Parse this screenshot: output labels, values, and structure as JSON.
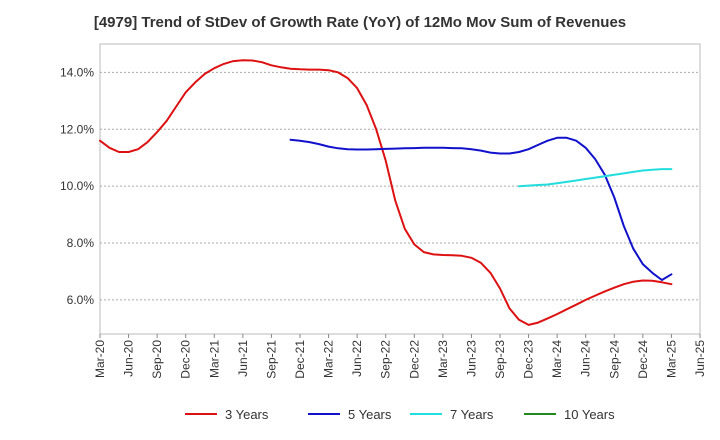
{
  "chart_data": {
    "type": "line",
    "title": "[4979]  Trend of StDev of Growth Rate (YoY) of 12Mo Mov Sum of Revenues",
    "xlabel": "",
    "ylabel": "",
    "ylim": [
      4.8,
      15.0
    ],
    "y_ticks": [
      6.0,
      8.0,
      10.0,
      12.0,
      14.0
    ],
    "y_tick_labels": [
      "6.0%",
      "8.0%",
      "10.0%",
      "12.0%",
      "14.0%"
    ],
    "x_tick_labels": [
      "Mar-20",
      "Jun-20",
      "Sep-20",
      "Dec-20",
      "Mar-21",
      "Jun-21",
      "Sep-21",
      "Dec-21",
      "Mar-22",
      "Jun-22",
      "Sep-22",
      "Dec-22",
      "Mar-23",
      "Jun-23",
      "Sep-23",
      "Dec-23",
      "Mar-24",
      "Jun-24",
      "Sep-24",
      "Dec-24",
      "Mar-25",
      "Jun-25"
    ],
    "x_range_months": [
      0,
      63
    ],
    "grid": "horizontal dashed",
    "legend_position": "bottom",
    "series": [
      {
        "name": "3 Years",
        "color": "#dd1111",
        "x": [
          0,
          1,
          2,
          3,
          4,
          5,
          6,
          7,
          8,
          9,
          10,
          11,
          12,
          13,
          14,
          15,
          16,
          17,
          18,
          19,
          20,
          21,
          22,
          23,
          24,
          25,
          26,
          27,
          28,
          29,
          30,
          31,
          32,
          33,
          34,
          35,
          36,
          37,
          38,
          39,
          40,
          41,
          42,
          43,
          44,
          45,
          46,
          47,
          48,
          49,
          50,
          51,
          52,
          53,
          54,
          55,
          56,
          57,
          58,
          59,
          60
        ],
        "values": [
          11.6,
          11.35,
          11.2,
          11.2,
          11.3,
          11.55,
          11.9,
          12.3,
          12.8,
          13.3,
          13.65,
          13.95,
          14.15,
          14.3,
          14.4,
          14.43,
          14.42,
          14.36,
          14.25,
          14.18,
          14.13,
          14.11,
          14.1,
          14.1,
          14.08,
          14.0,
          13.8,
          13.45,
          12.85,
          12.0,
          10.9,
          9.5,
          8.5,
          7.95,
          7.68,
          7.6,
          7.58,
          7.57,
          7.55,
          7.48,
          7.3,
          6.95,
          6.4,
          5.7,
          5.3,
          5.12,
          5.2,
          5.35,
          5.5,
          5.67,
          5.83,
          6.0,
          6.15,
          6.3,
          6.43,
          6.55,
          6.64,
          6.68,
          6.67,
          6.62,
          6.55
        ]
      },
      {
        "name": "5 Years",
        "color": "#1111cc",
        "x": [
          20,
          21,
          22,
          23,
          24,
          25,
          26,
          27,
          28,
          29,
          30,
          31,
          32,
          33,
          34,
          35,
          36,
          37,
          38,
          39,
          40,
          41,
          42,
          43,
          44,
          45,
          46,
          47,
          48,
          49,
          50,
          51,
          52,
          53,
          54,
          55,
          56,
          57,
          58,
          59,
          60
        ],
        "values": [
          11.63,
          11.6,
          11.55,
          11.48,
          11.39,
          11.33,
          11.3,
          11.29,
          11.29,
          11.3,
          11.31,
          11.32,
          11.33,
          11.34,
          11.35,
          11.35,
          11.35,
          11.34,
          11.33,
          11.3,
          11.25,
          11.18,
          11.15,
          11.15,
          11.2,
          11.3,
          11.45,
          11.6,
          11.7,
          11.7,
          11.6,
          11.35,
          10.95,
          10.4,
          9.6,
          8.6,
          7.8,
          7.25,
          6.95,
          6.7,
          6.9
        ]
      },
      {
        "name": "7 Years",
        "color": "#22dddd",
        "x": [
          44,
          45,
          46,
          47,
          48,
          49,
          50,
          51,
          52,
          53,
          54,
          55,
          56,
          57,
          58,
          59,
          60
        ],
        "values": [
          10.0,
          10.02,
          10.04,
          10.06,
          10.1,
          10.15,
          10.2,
          10.25,
          10.3,
          10.35,
          10.4,
          10.45,
          10.5,
          10.55,
          10.58,
          10.6,
          10.6
        ]
      },
      {
        "name": "10 Years",
        "color": "#228822",
        "x": [],
        "values": []
      }
    ]
  }
}
